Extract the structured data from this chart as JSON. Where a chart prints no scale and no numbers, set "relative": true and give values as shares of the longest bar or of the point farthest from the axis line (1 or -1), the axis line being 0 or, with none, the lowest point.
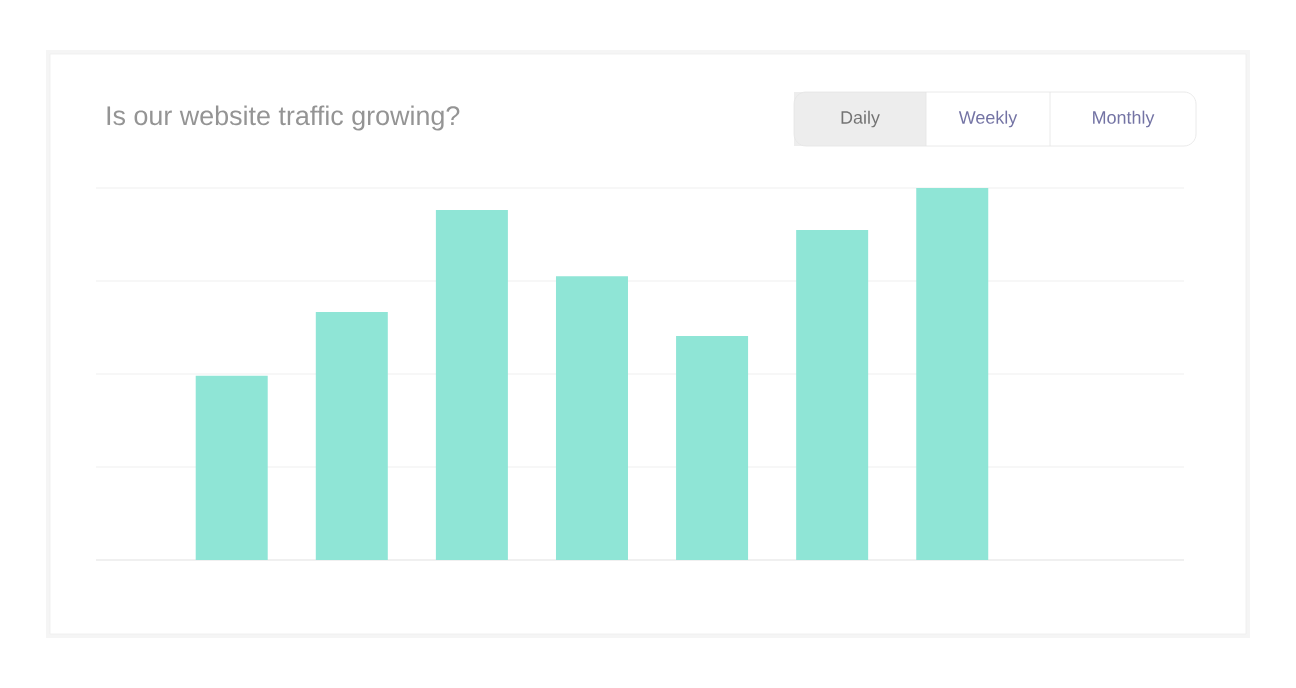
{
  "chart_data": {
    "type": "bar",
    "title": "Is our website traffic growing?",
    "categories": [
      null,
      null,
      null,
      null,
      null,
      null,
      null
    ],
    "values": [
      0.495,
      0.667,
      0.941,
      0.763,
      0.602,
      0.887,
      1
    ],
    "color": "#8fe5d6",
    "relative": true,
    "grid": "y",
    "tick_labels": false,
    "annotations": [
      "Daily",
      "Weekly",
      "Monthly"
    ]
  }
}
